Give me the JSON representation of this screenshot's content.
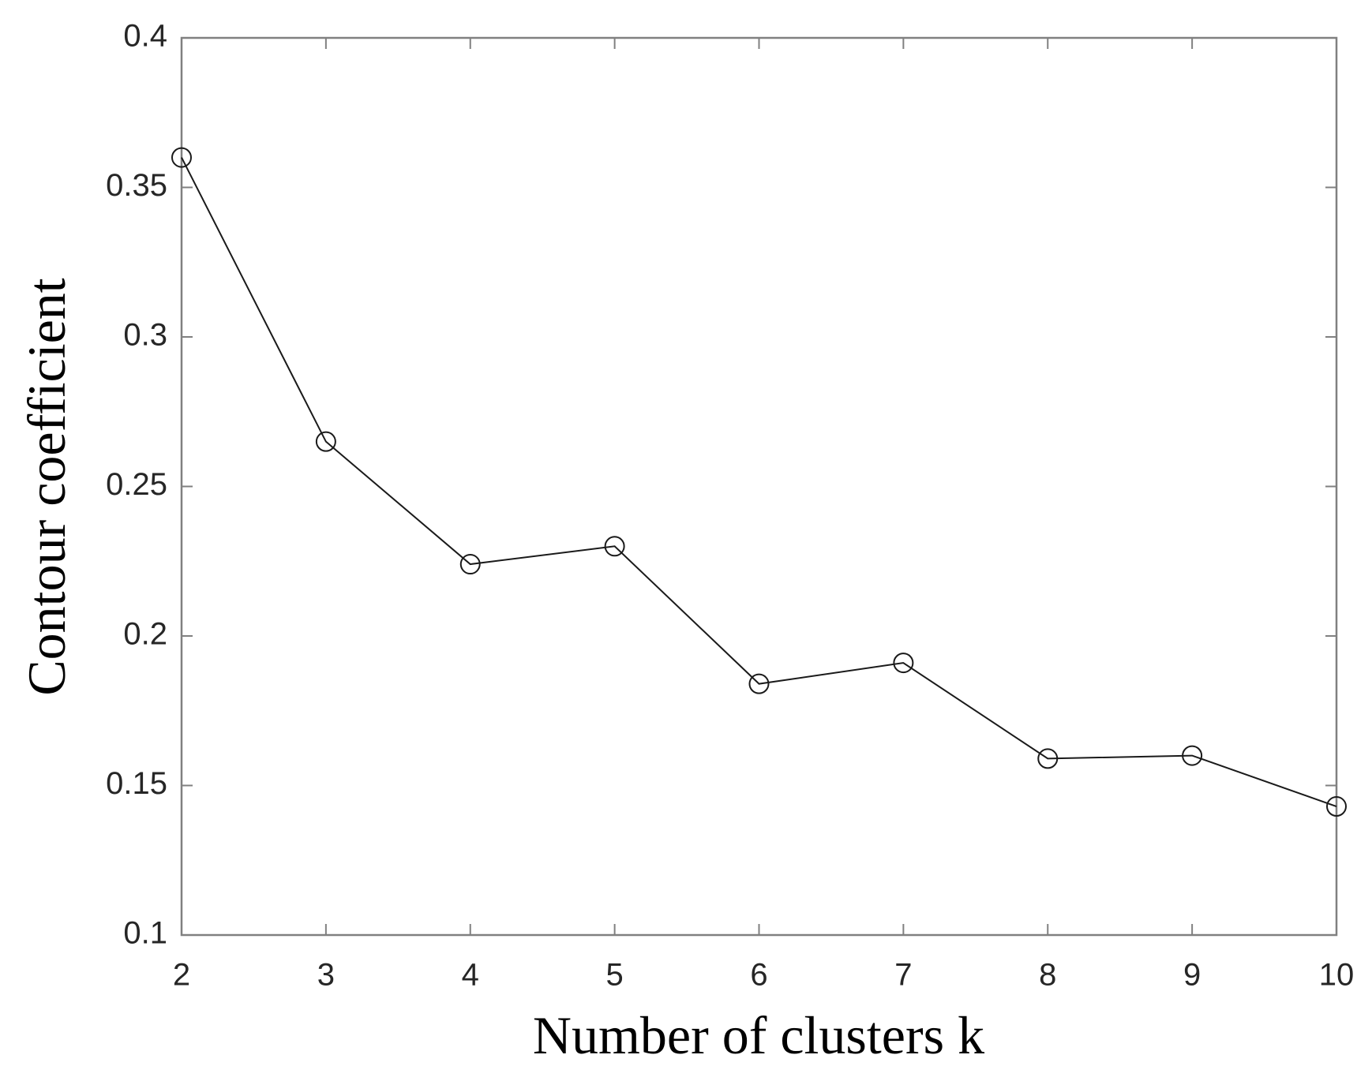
{
  "chart_data": {
    "type": "line",
    "xlabel": "Number of clusters k",
    "ylabel": "Contour coefficient",
    "x": [
      2,
      3,
      4,
      5,
      6,
      7,
      8,
      9,
      10
    ],
    "values": [
      0.36,
      0.265,
      0.224,
      0.23,
      0.184,
      0.191,
      0.159,
      0.16,
      0.143
    ],
    "color": "#1a1a1a",
    "marker": "circle",
    "xlim": [
      2,
      10
    ],
    "xticks": [
      2,
      3,
      4,
      5,
      6,
      7,
      8,
      9,
      10
    ],
    "ylim": [
      0.1,
      0.4
    ],
    "yticks": [
      0.1,
      0.15,
      0.2,
      0.25,
      0.3,
      0.35,
      0.4
    ],
    "grid": false
  }
}
